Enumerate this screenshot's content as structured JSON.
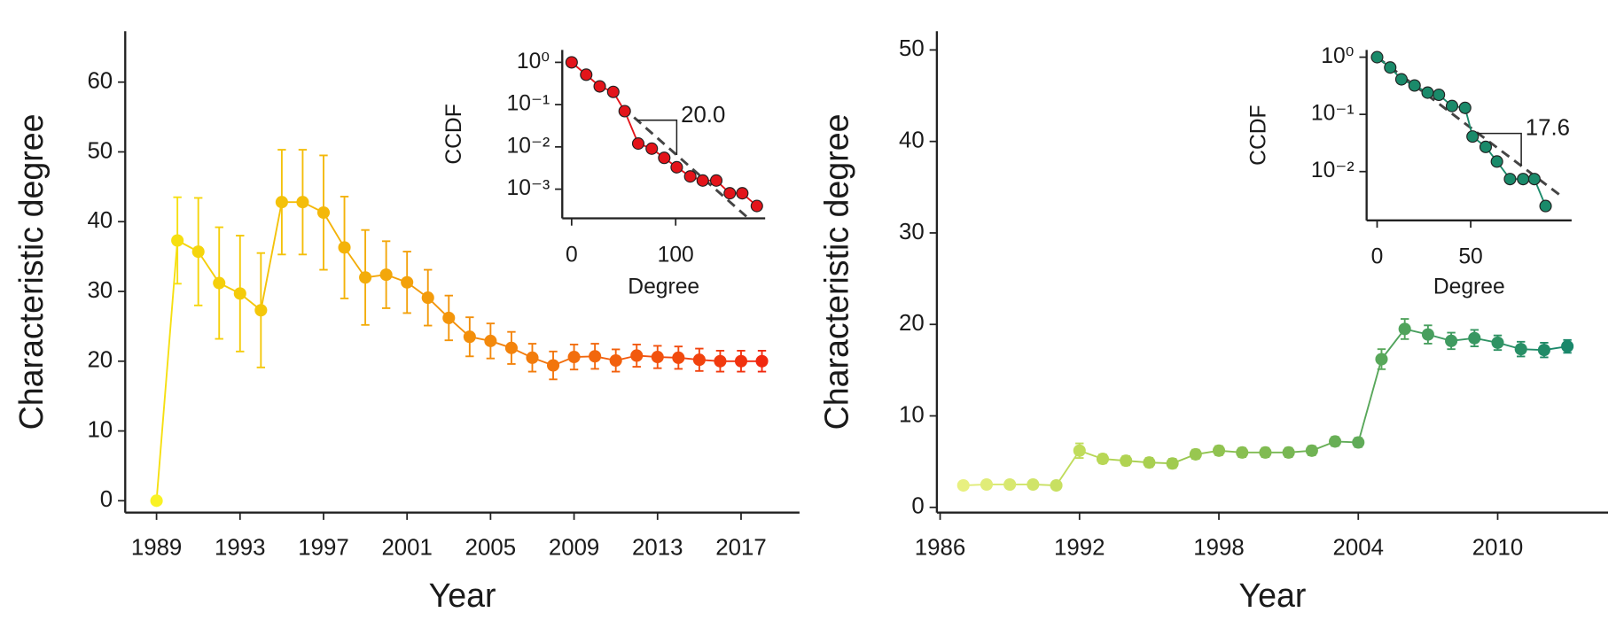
{
  "chart_data": [
    {
      "type": "line",
      "xlabel": "Year",
      "ylabel": "Characteristic degree",
      "x": [
        1989,
        1990,
        1991,
        1992,
        1993,
        1994,
        1995,
        1996,
        1997,
        1998,
        1999,
        2000,
        2001,
        2002,
        2003,
        2004,
        2005,
        2006,
        2007,
        2008,
        2009,
        2010,
        2011,
        2012,
        2013,
        2014,
        2015,
        2016,
        2017,
        2018
      ],
      "values": [
        0,
        37.3,
        35.7,
        31.2,
        29.7,
        27.3,
        42.8,
        42.8,
        41.3,
        36.3,
        32.0,
        32.4,
        31.3,
        29.1,
        26.2,
        23.5,
        22.9,
        21.9,
        20.5,
        19.4,
        20.6,
        20.7,
        20.1,
        20.8,
        20.6,
        20.5,
        20.2,
        20.0,
        20.0,
        20.0
      ],
      "errors": [
        0,
        6.2,
        7.7,
        8.0,
        8.3,
        8.2,
        7.5,
        7.5,
        8.2,
        7.3,
        6.8,
        4.8,
        4.4,
        4.0,
        3.2,
        2.8,
        2.5,
        2.3,
        2.0,
        2.0,
        1.8,
        1.8,
        1.6,
        1.6,
        1.6,
        1.6,
        1.6,
        1.5,
        1.5,
        1.5
      ],
      "colors": [
        "#f9f224",
        "#f6df10",
        "#f5d50c",
        "#f5cf0b",
        "#f4cb0a",
        "#f4c70a",
        "#f4c20a",
        "#f4bd0a",
        "#f4b80a",
        "#f4b30a",
        "#f3ad0a",
        "#f3a70a",
        "#f3a10b",
        "#f39b0b",
        "#f3950b",
        "#f38f0b",
        "#f3890c",
        "#f3830c",
        "#f27c0c",
        "#f2750c",
        "#f26e0d",
        "#f2670d",
        "#f2600d",
        "#f2590e",
        "#f2520e",
        "#f14a0e",
        "#f1420e",
        "#f13a0f",
        "#f1320f",
        "#f1280f"
      ],
      "xlim": [
        1987.5,
        2019.8
      ],
      "xticks": [
        1989,
        1993,
        1997,
        2001,
        2005,
        2009,
        2013,
        2017
      ],
      "ylim": [
        -1.7,
        67.3
      ],
      "yticks": [
        0,
        10,
        20,
        30,
        40,
        50,
        60
      ]
    },
    {
      "type": "line",
      "xlabel": "Degree",
      "ylabel": "CCDF",
      "log_y": true,
      "color": "#e3141a",
      "x": [
        0,
        14,
        27,
        40,
        51,
        64,
        77,
        89,
        101,
        114,
        126,
        139,
        152,
        164,
        178
      ],
      "values": [
        1,
        0.51,
        0.27,
        0.2,
        0.07,
        0.012,
        0.0091,
        0.0055,
        0.0033,
        0.002,
        0.0016,
        0.0016,
        0.0008,
        0.0008,
        0.0004
      ],
      "fit": {
        "value": 20,
        "label": "20.0"
      },
      "xlim": [
        -9,
        186
      ],
      "xticks": [
        0,
        100
      ],
      "ylim": [
        1.97,
        0.000204
      ],
      "yticks": [
        {
          "value": 1,
          "label": "10⁰"
        },
        {
          "value": 0.1,
          "label": "10⁻¹"
        },
        {
          "value": 0.01,
          "label": "10⁻²"
        },
        {
          "value": 0.001,
          "label": "10⁻³"
        }
      ]
    },
    {
      "type": "line",
      "xlabel": "Year",
      "ylabel": "Characteristic degree",
      "x": [
        1987,
        1988,
        1989,
        1990,
        1991,
        1992,
        1993,
        1994,
        1995,
        1996,
        1997,
        1998,
        1999,
        2000,
        2001,
        2002,
        2003,
        2004,
        2005,
        2006,
        2007,
        2008,
        2009,
        2010,
        2011,
        2012,
        2013
      ],
      "values": [
        2.4,
        2.5,
        2.5,
        2.5,
        2.4,
        6.2,
        5.3,
        5.1,
        4.9,
        4.8,
        5.8,
        6.2,
        6.0,
        6.0,
        6.0,
        6.2,
        7.2,
        7.1,
        16.2,
        19.5,
        18.9,
        18.2,
        18.5,
        18.0,
        17.3,
        17.2,
        17.6
      ],
      "errors": [
        0.4,
        0.4,
        0.4,
        0.4,
        0.4,
        0.8,
        0.5,
        0.5,
        0.5,
        0.5,
        0.5,
        0.5,
        0.5,
        0.5,
        0.5,
        0.5,
        0.5,
        0.5,
        1.1,
        1.1,
        1.0,
        0.9,
        0.9,
        0.8,
        0.8,
        0.8,
        0.7
      ],
      "colors": [
        "#e8f080",
        "#e0ec78",
        "#d8e870",
        "#d0e468",
        "#c8e061",
        "#c0dc5b",
        "#b8d756",
        "#b0d352",
        "#a8cf50",
        "#a0cb50",
        "#98c750",
        "#90c350",
        "#88bf51",
        "#80bb52",
        "#78b753",
        "#70b354",
        "#68af56",
        "#60ab58",
        "#58a75a",
        "#50a35c",
        "#489f5e",
        "#409b60",
        "#389762",
        "#309364",
        "#288f66",
        "#218b68",
        "#1a876a"
      ],
      "xlim": [
        1985.86,
        2014.75
      ],
      "xticks": [
        1986,
        1992,
        1998,
        2004,
        2010
      ],
      "ylim": [
        -0.57,
        52.05
      ],
      "yticks": [
        0,
        10,
        20,
        30,
        40,
        50
      ]
    },
    {
      "type": "line",
      "xlabel": "Degree",
      "ylabel": "CCDF",
      "log_y": true,
      "color": "#1a8a6a",
      "x": [
        0,
        7,
        13,
        20,
        27,
        33,
        40,
        47,
        51,
        58,
        64,
        71,
        78,
        84,
        90
      ],
      "values": [
        1,
        0.66,
        0.41,
        0.32,
        0.24,
        0.22,
        0.14,
        0.13,
        0.041,
        0.027,
        0.015,
        0.0074,
        0.0074,
        0.0074,
        0.0025
      ],
      "fit": {
        "value": 17.6,
        "label": "17.6"
      },
      "xlim": [
        -5.6,
        103.9
      ],
      "xticks": [
        0,
        50
      ],
      "ylim": [
        1.34,
        0.0014
      ],
      "yticks": [
        {
          "value": 1,
          "label": "10⁰"
        },
        {
          "value": 0.1,
          "label": "10⁻¹"
        },
        {
          "value": 0.01,
          "label": "10⁻²"
        }
      ]
    }
  ]
}
